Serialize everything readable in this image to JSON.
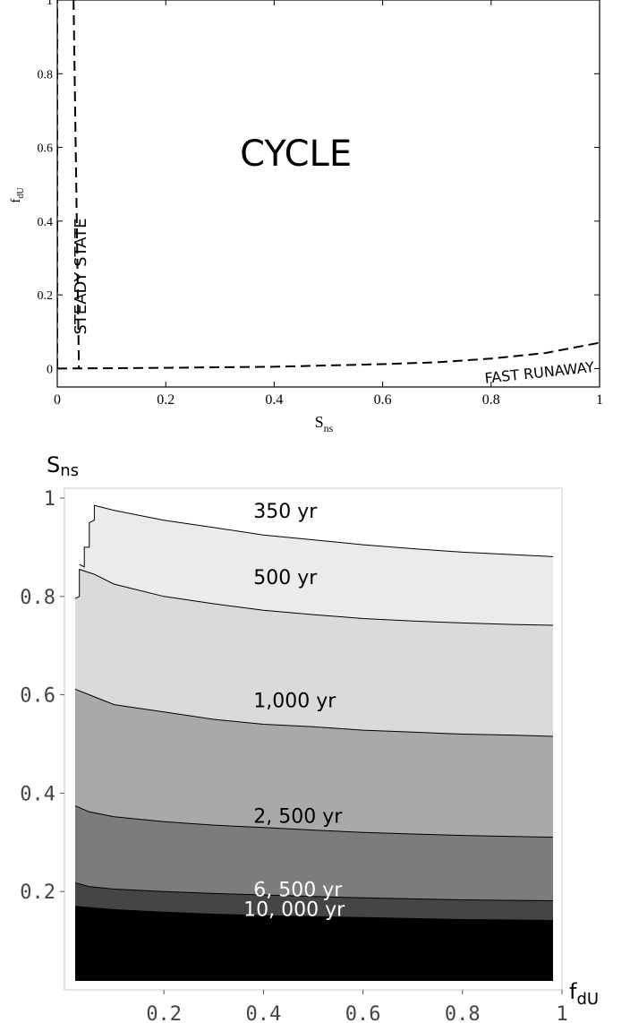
{
  "chart_data": [
    {
      "type": "line",
      "xlabel": "S",
      "xlabel_sub": "ns",
      "ylabel": "f",
      "ylabel_sub": "dU",
      "xlim": [
        0,
        1
      ],
      "ylim": [
        -0.05,
        1
      ],
      "x_ticks": [
        "0",
        "0.2",
        "0.4",
        "0.6",
        "0.8",
        "1"
      ],
      "y_ticks": [
        "0",
        "0.2",
        "0.4",
        "0.6",
        "0.8",
        "1"
      ],
      "grid": false,
      "region_labels": [
        {
          "text": "CYCLE",
          "x": 0.44,
          "y": 0.55
        },
        {
          "text": "STEADY STATE",
          "x": 0.02,
          "y": 0.25,
          "rotated": true
        },
        {
          "text": "FAST RUNAWAY",
          "x": 0.89,
          "y": 0.0,
          "rotated": true
        }
      ],
      "boundaries": [
        {
          "style": "dashed",
          "points": [
            [
              0.0,
              0.0
            ],
            [
              0.0,
              1.0
            ]
          ]
        },
        {
          "style": "dashed",
          "points": [
            [
              0.03,
              1.0
            ],
            [
              0.04,
              0.0
            ]
          ]
        },
        {
          "style": "dashed",
          "points": [
            [
              0.0,
              0.0
            ],
            [
              0.2,
              0.002
            ],
            [
              0.4,
              0.005
            ],
            [
              0.6,
              0.012
            ],
            [
              0.7,
              0.017
            ],
            [
              0.8,
              0.027
            ],
            [
              0.9,
              0.042
            ],
            [
              1.0,
              0.07
            ]
          ]
        }
      ]
    },
    {
      "type": "area",
      "xlabel": "f",
      "xlabel_sub": "dU",
      "ylabel": "S",
      "ylabel_sub": "ns",
      "xlim": [
        0,
        1
      ],
      "ylim": [
        0,
        1.02
      ],
      "x_ticks": [
        "0.2",
        "0.4",
        "0.6",
        "0.8",
        "1"
      ],
      "y_ticks": [
        "0.2",
        "0.4",
        "0.6",
        "0.8",
        "1"
      ],
      "grid": false,
      "fill_colors": [
        "#ffffff",
        "#ebebeb",
        "#dadada",
        "#a9a9a9",
        "#7c7c7c",
        "#454545",
        "#000000"
      ],
      "contours": [
        {
          "label": "350 yr",
          "label_x": 0.38,
          "label_y": 0.96,
          "points": [
            [
              0.03,
              0.865
            ],
            [
              0.04,
              0.86
            ],
            [
              0.04,
              0.9
            ],
            [
              0.05,
              0.9
            ],
            [
              0.05,
              0.95
            ],
            [
              0.06,
              0.955
            ],
            [
              0.06,
              0.985
            ],
            [
              0.1,
              0.975
            ],
            [
              0.2,
              0.955
            ],
            [
              0.3,
              0.94
            ],
            [
              0.4,
              0.925
            ],
            [
              0.5,
              0.915
            ],
            [
              0.6,
              0.905
            ],
            [
              0.7,
              0.897
            ],
            [
              0.8,
              0.89
            ],
            [
              0.9,
              0.885
            ],
            [
              1.0,
              0.88
            ]
          ]
        },
        {
          "label": "500 yr",
          "label_x": 0.38,
          "label_y": 0.825,
          "points": [
            [
              0.02,
              0.795
            ],
            [
              0.03,
              0.8
            ],
            [
              0.03,
              0.855
            ],
            [
              0.06,
              0.845
            ],
            [
              0.1,
              0.825
            ],
            [
              0.2,
              0.8
            ],
            [
              0.3,
              0.785
            ],
            [
              0.4,
              0.772
            ],
            [
              0.5,
              0.763
            ],
            [
              0.6,
              0.755
            ],
            [
              0.7,
              0.75
            ],
            [
              0.8,
              0.746
            ],
            [
              0.9,
              0.743
            ],
            [
              1.0,
              0.741
            ]
          ]
        },
        {
          "label": "1,000 yr",
          "label_x": 0.38,
          "label_y": 0.575,
          "points": [
            [
              0.02,
              0.612
            ],
            [
              0.05,
              0.6
            ],
            [
              0.1,
              0.58
            ],
            [
              0.2,
              0.565
            ],
            [
              0.3,
              0.55
            ],
            [
              0.4,
              0.54
            ],
            [
              0.5,
              0.535
            ],
            [
              0.6,
              0.528
            ],
            [
              0.7,
              0.524
            ],
            [
              0.8,
              0.52
            ],
            [
              0.9,
              0.518
            ],
            [
              1.0,
              0.515
            ]
          ]
        },
        {
          "label": "2, 500 yr",
          "label_x": 0.38,
          "label_y": 0.34,
          "points": [
            [
              0.02,
              0.375
            ],
            [
              0.05,
              0.362
            ],
            [
              0.1,
              0.352
            ],
            [
              0.2,
              0.342
            ],
            [
              0.3,
              0.335
            ],
            [
              0.4,
              0.33
            ],
            [
              0.5,
              0.325
            ],
            [
              0.6,
              0.32
            ],
            [
              0.7,
              0.317
            ],
            [
              0.8,
              0.314
            ],
            [
              0.9,
              0.312
            ],
            [
              1.0,
              0.31
            ]
          ]
        },
        {
          "label": "6, 500 yr",
          "label_x": 0.38,
          "label_y": 0.19,
          "light": true,
          "points": [
            [
              0.02,
              0.218
            ],
            [
              0.05,
              0.21
            ],
            [
              0.1,
              0.205
            ],
            [
              0.2,
              0.2
            ],
            [
              0.3,
              0.196
            ],
            [
              0.4,
              0.193
            ],
            [
              0.5,
              0.19
            ],
            [
              0.6,
              0.187
            ],
            [
              0.7,
              0.185
            ],
            [
              0.8,
              0.183
            ],
            [
              0.9,
              0.182
            ],
            [
              1.0,
              0.181
            ]
          ]
        },
        {
          "label": "10, 000 yr",
          "label_x": 0.36,
          "label_y": 0.15,
          "light": true,
          "points": [
            [
              0.02,
              0.17
            ],
            [
              0.1,
              0.163
            ],
            [
              0.2,
              0.158
            ],
            [
              0.3,
              0.154
            ],
            [
              0.4,
              0.151
            ],
            [
              0.5,
              0.149
            ],
            [
              0.6,
              0.147
            ],
            [
              0.7,
              0.145
            ],
            [
              0.8,
              0.143
            ],
            [
              0.9,
              0.142
            ],
            [
              1.0,
              0.141
            ]
          ]
        }
      ]
    }
  ]
}
